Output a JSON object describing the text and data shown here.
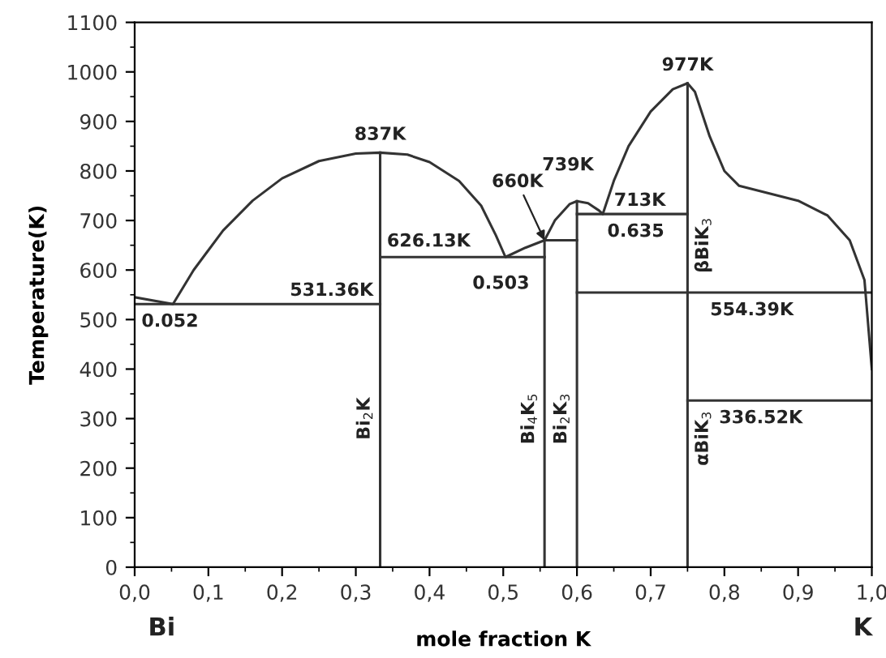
{
  "chart_data": {
    "type": "line",
    "xlabel": "mole fraction K",
    "ylabel": "Temperature(K)",
    "xlim": [
      0,
      1
    ],
    "ylim": [
      0,
      1100
    ],
    "xticks": [
      {
        "value": 0,
        "label": "0,0"
      },
      {
        "value": 0.1,
        "label": "0,1"
      },
      {
        "value": 0.2,
        "label": "0,2"
      },
      {
        "value": 0.3,
        "label": "0,3"
      },
      {
        "value": 0.4,
        "label": "0,4"
      },
      {
        "value": 0.5,
        "label": "0,5"
      },
      {
        "value": 0.6,
        "label": "0,6"
      },
      {
        "value": 0.7,
        "label": "0,7"
      },
      {
        "value": 0.8,
        "label": "0,8"
      },
      {
        "value": 0.9,
        "label": "0,9"
      },
      {
        "value": 1,
        "label": "1,0"
      }
    ],
    "yticks": [
      0,
      100,
      200,
      300,
      400,
      500,
      600,
      700,
      800,
      900,
      1000,
      1100
    ],
    "grid": false,
    "legend": false,
    "marker": "none",
    "line_style": "solid",
    "series": [
      {
        "color": "#333333",
        "x": [
          0,
          0.052,
          0.08,
          0.12,
          0.16,
          0.2,
          0.25,
          0.3,
          0.333,
          0.37,
          0.4,
          0.44,
          0.47,
          0.49,
          0.503,
          0.53,
          0.556,
          0.57,
          0.59,
          0.6,
          0.615,
          0.63,
          0.635,
          0.65,
          0.67,
          0.7,
          0.73,
          0.75,
          0.76,
          0.78,
          0.8,
          0.82,
          0.86,
          0.9,
          0.94,
          0.97,
          0.99,
          1.0
        ],
        "values": [
          545,
          531.36,
          600,
          680,
          740,
          785,
          820,
          835,
          837,
          833,
          818,
          780,
          730,
          670,
          626.13,
          645,
          660,
          700,
          733,
          739,
          735,
          720,
          713,
          780,
          850,
          920,
          965,
          977,
          960,
          870,
          800,
          770,
          755,
          740,
          710,
          660,
          580,
          400
        ]
      },
      {
        "color": "#333333",
        "x": [
          0,
          0.333
        ],
        "values": [
          531.36,
          531.36
        ]
      },
      {
        "color": "#333333",
        "x": [
          0.333,
          0.556
        ],
        "values": [
          626.13,
          626.13
        ]
      },
      {
        "color": "#333333",
        "x": [
          0.556,
          0.6
        ],
        "values": [
          660,
          660
        ]
      },
      {
        "color": "#333333",
        "x": [
          0.6,
          0.75
        ],
        "values": [
          713,
          713
        ]
      },
      {
        "color": "#333333",
        "x": [
          0.6,
          1.0
        ],
        "values": [
          554.39,
          554.39
        ]
      },
      {
        "color": "#333333",
        "x": [
          0.75,
          1.0
        ],
        "values": [
          336.52,
          336.52
        ]
      },
      {
        "color": "#333333",
        "x": [
          0.333,
          0.333
        ],
        "values": [
          0,
          837
        ]
      },
      {
        "color": "#333333",
        "x": [
          0.556,
          0.556
        ],
        "values": [
          0,
          660
        ]
      },
      {
        "color": "#333333",
        "x": [
          0.6,
          0.6
        ],
        "values": [
          0,
          739
        ]
      },
      {
        "color": "#333333",
        "x": [
          0.75,
          0.75
        ],
        "values": [
          0,
          977
        ]
      }
    ],
    "annotations": [
      {
        "text": "837K",
        "x": 0.333,
        "y": 837
      },
      {
        "text": "531.36K",
        "x": 0.333,
        "y": 531.36
      },
      {
        "text": "626.13K",
        "x": 0.333,
        "y": 626.13
      },
      {
        "text": "0.052",
        "x": 0.052,
        "y": 531.36
      },
      {
        "text": "0.503",
        "x": 0.503,
        "y": 626.13
      },
      {
        "text": "660K",
        "x": 0.556,
        "y": 660
      },
      {
        "text": "739K",
        "x": 0.6,
        "y": 739
      },
      {
        "text": "713K",
        "x": 0.635,
        "y": 713
      },
      {
        "text": "0.635",
        "x": 0.635,
        "y": 713
      },
      {
        "text": "977K",
        "x": 0.75,
        "y": 977
      },
      {
        "text": "554.39K",
        "x": 0.75,
        "y": 554.39
      },
      {
        "text": "336.52K",
        "x": 0.75,
        "y": 336.52
      },
      {
        "text": "Bi$_{2}$K",
        "x": 0.333,
        "y": 300
      },
      {
        "text": "Bi$_{4}$K$_{5}$",
        "x": 0.556,
        "y": 300
      },
      {
        "text": "Bi$_{2}$K$_{3}$",
        "x": 0.6,
        "y": 300
      },
      {
        "text": "βBiK$_{3}$",
        "x": 0.75,
        "y": 650
      },
      {
        "text": "αBiK$_{3}$",
        "x": 0.75,
        "y": 260
      },
      "Bi",
      "K"
    ]
  }
}
